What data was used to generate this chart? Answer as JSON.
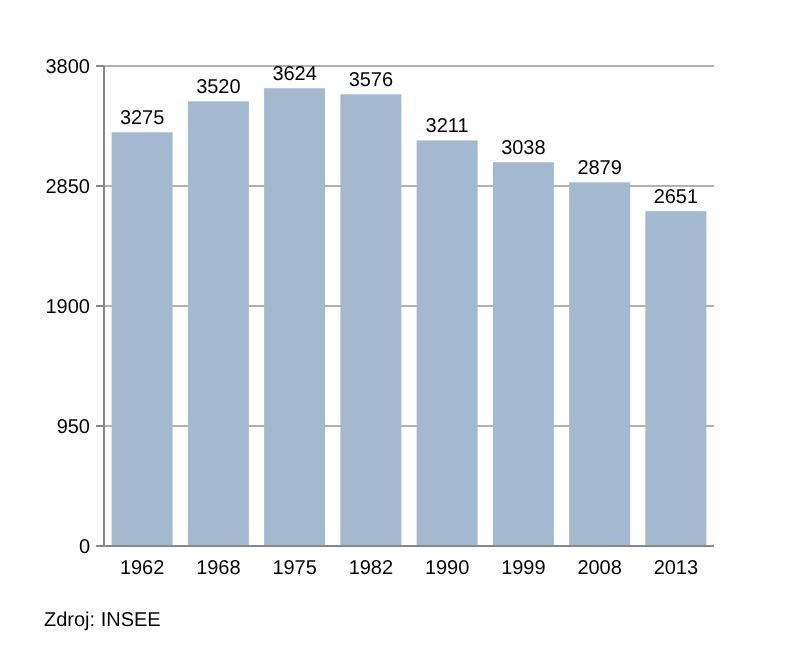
{
  "chart_data": {
    "type": "bar",
    "categories": [
      "1962",
      "1968",
      "1975",
      "1982",
      "1990",
      "1999",
      "2008",
      "2013"
    ],
    "values": [
      3275,
      3520,
      3624,
      3576,
      3211,
      3038,
      2879,
      2651
    ],
    "color": "#a3b9cf",
    "ylim": [
      0,
      3800
    ],
    "yticks": [
      0,
      950,
      1900,
      2850,
      3800
    ],
    "grid": "y",
    "data_labels": true,
    "annotations": [
      "Zdroj: INSEE"
    ]
  }
}
